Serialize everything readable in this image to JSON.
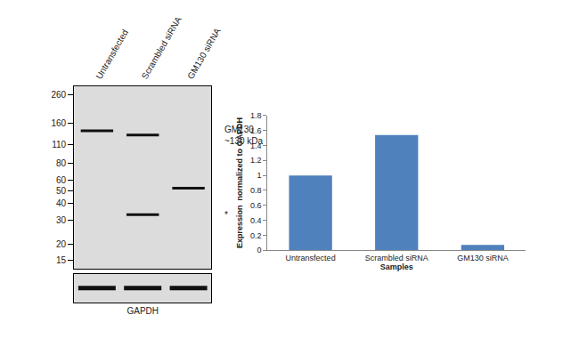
{
  "chart_data": [
    {
      "type": "blot",
      "categories": [
        "Untransfected",
        "Scrambled siRNA",
        "GM130 siRNA"
      ],
      "log": "y",
      "ylim": [
        13,
        300
      ],
      "yticks": [
        260,
        160,
        110,
        80,
        60,
        50,
        40,
        30,
        20,
        15
      ],
      "bands": [
        {
          "lane": 0,
          "mw": 140
        },
        {
          "lane": 1,
          "mw": 130
        },
        {
          "lane": 1,
          "mw": 33
        },
        {
          "lane": 2,
          "mw": 52
        }
      ],
      "annotations": [
        {
          "text": [
            "GM130",
            "~130 kDa"
          ],
          "y": 130
        },
        {
          "text": "*",
          "y": 33
        }
      ],
      "loading_control": {
        "label": "GAPDH",
        "lanes": [
          0,
          1,
          2
        ]
      },
      "color": "#111111"
    },
    {
      "type": "bar",
      "categories": [
        "Untransfected",
        "Scrambled siRNA",
        "GM130 siRNA"
      ],
      "values": [
        1.0,
        1.54,
        0.07
      ],
      "color": "#4f81bd",
      "xlabel": "Samples",
      "ylabel": "Expression  normalized to GAPDH",
      "ylim": [
        0,
        1.8
      ],
      "yticks": [
        0,
        0.2,
        0.4,
        0.6,
        0.8,
        1,
        1.2,
        1.4,
        1.6,
        1.8
      ],
      "grid": false
    }
  ]
}
